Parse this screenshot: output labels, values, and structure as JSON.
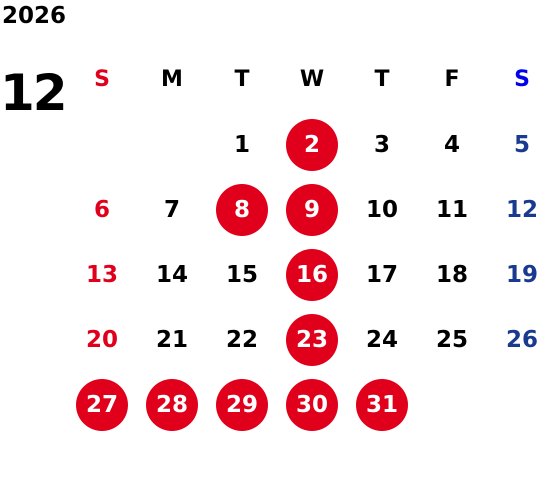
{
  "year": "2026",
  "month": "12",
  "colors": {
    "sunday": "#e0001b",
    "saturday_header": "#0000ee",
    "saturday": "#1a3a8f",
    "holiday_circle": "#e0001b",
    "weekday": "#000000"
  },
  "weekdays": [
    "S",
    "M",
    "T",
    "W",
    "T",
    "F",
    "S"
  ],
  "weeks": [
    [
      {
        "day": "",
        "holiday": false
      },
      {
        "day": "",
        "holiday": false
      },
      {
        "day": "1",
        "holiday": false
      },
      {
        "day": "2",
        "holiday": true
      },
      {
        "day": "3",
        "holiday": false
      },
      {
        "day": "4",
        "holiday": false
      },
      {
        "day": "5",
        "holiday": false
      }
    ],
    [
      {
        "day": "6",
        "holiday": false
      },
      {
        "day": "7",
        "holiday": false
      },
      {
        "day": "8",
        "holiday": true
      },
      {
        "day": "9",
        "holiday": true
      },
      {
        "day": "10",
        "holiday": false
      },
      {
        "day": "11",
        "holiday": false
      },
      {
        "day": "12",
        "holiday": false
      }
    ],
    [
      {
        "day": "13",
        "holiday": false
      },
      {
        "day": "14",
        "holiday": false
      },
      {
        "day": "15",
        "holiday": false
      },
      {
        "day": "16",
        "holiday": true
      },
      {
        "day": "17",
        "holiday": false
      },
      {
        "day": "18",
        "holiday": false
      },
      {
        "day": "19",
        "holiday": false
      }
    ],
    [
      {
        "day": "20",
        "holiday": false
      },
      {
        "day": "21",
        "holiday": false
      },
      {
        "day": "22",
        "holiday": false
      },
      {
        "day": "23",
        "holiday": true
      },
      {
        "day": "24",
        "holiday": false
      },
      {
        "day": "25",
        "holiday": false
      },
      {
        "day": "26",
        "holiday": false
      }
    ],
    [
      {
        "day": "27",
        "holiday": true
      },
      {
        "day": "28",
        "holiday": true
      },
      {
        "day": "29",
        "holiday": true
      },
      {
        "day": "30",
        "holiday": true
      },
      {
        "day": "31",
        "holiday": true
      },
      {
        "day": "",
        "holiday": false
      },
      {
        "day": "",
        "holiday": false
      }
    ]
  ]
}
